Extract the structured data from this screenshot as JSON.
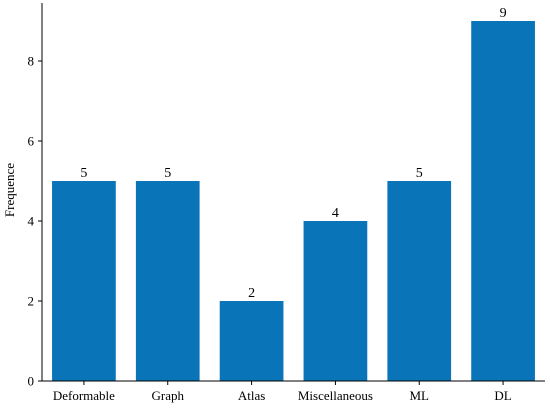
{
  "chart_data": {
    "type": "bar",
    "title": "",
    "xlabel": "",
    "ylabel": "Frequence",
    "categories": [
      "Deformable",
      "Graph",
      "Atlas",
      "Miscellaneous",
      "ML",
      "DL"
    ],
    "values": [
      5,
      5,
      2,
      4,
      5,
      9
    ],
    "ylim": [
      0,
      9.45
    ],
    "yticks": [
      0,
      2,
      4,
      6,
      8
    ],
    "grid": false,
    "bar_color": "#0a74b8",
    "data_labels": true
  }
}
